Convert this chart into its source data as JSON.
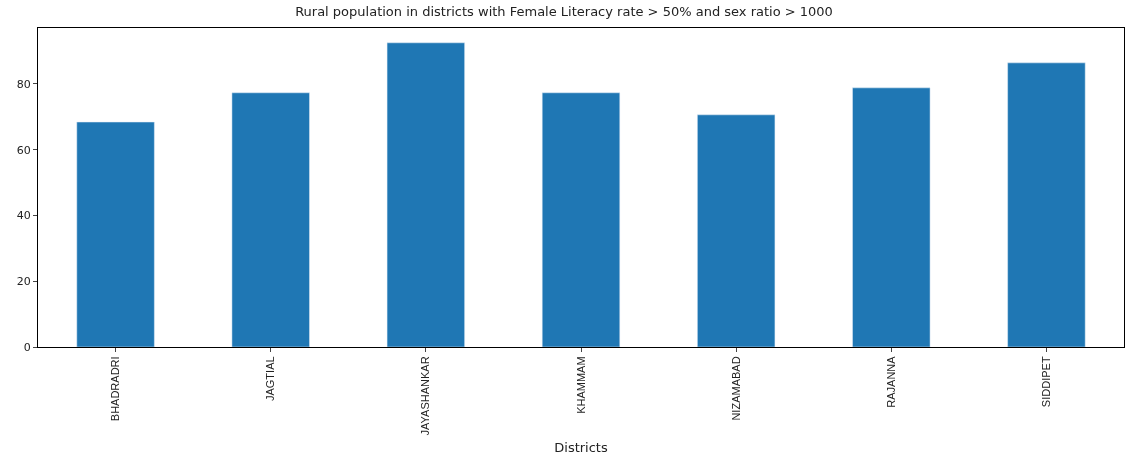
{
  "chart_data": {
    "type": "bar",
    "title": "Rural population in districts with Female Literacy rate > 50% and sex ratio > 1000",
    "xlabel": "Districts",
    "categories": [
      "BHADRADRI",
      "JAGTIAL",
      "JAYASHANKAR",
      "KHAMMAM",
      "NIZAMABAD",
      "RAJANNA",
      "SIDDIPET"
    ],
    "values": [
      68.4,
      77.3,
      92.5,
      77.3,
      70.6,
      78.8,
      86.4
    ],
    "color": "#1f77b4",
    "ylim": [
      0,
      97
    ],
    "yticks": [
      0,
      20,
      40,
      60,
      80
    ],
    "legend": false
  }
}
